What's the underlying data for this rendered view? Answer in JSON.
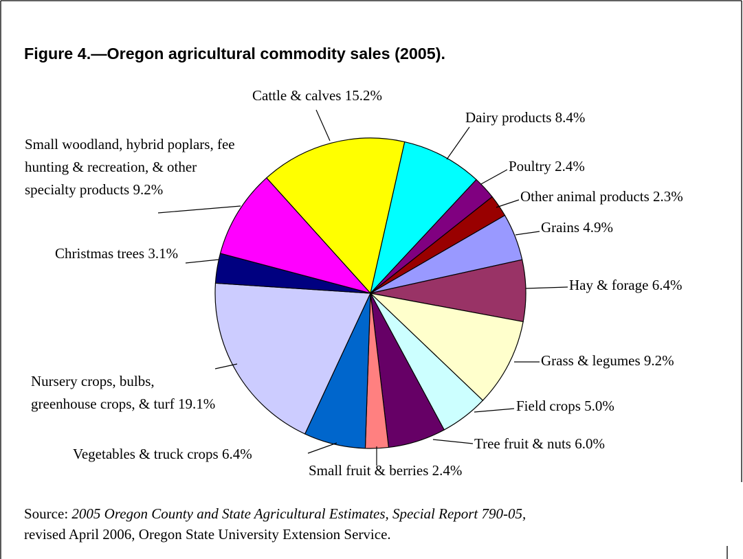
{
  "chart_data": {
    "type": "pie",
    "title": "Figure 4.—Oregon agricultural commodity sales (2005).",
    "categories": [
      "Cattle & calves",
      "Dairy products",
      "Poultry",
      "Other animal products",
      "Grains",
      "Hay & forage",
      "Grass & legumes",
      "Field crops",
      "Tree fruit & nuts",
      "Small fruit & berries",
      "Vegetables & truck crops",
      "Nursery crops, bulbs, greenhouse crops, & turf",
      "Christmas trees",
      "Small woodland, hybrid poplars, fee hunting & recreation, & other specialty products"
    ],
    "values": [
      15.2,
      8.4,
      2.4,
      2.3,
      4.9,
      6.4,
      9.2,
      5.0,
      6.0,
      2.4,
      6.4,
      19.1,
      3.1,
      9.2
    ],
    "value_labels": [
      "15.2%",
      "8.4%",
      "2.4%",
      "2.3%",
      "4.9%",
      "6.4%",
      "9.2%",
      "5.0%",
      "6.0%",
      "2.4%",
      "6.4%",
      "19.1%",
      "3.1%",
      "9.2%"
    ],
    "colors": [
      "#ffff00",
      "#00ffff",
      "#800080",
      "#990000",
      "#9999ff",
      "#993366",
      "#ffffcc",
      "#ccffff",
      "#660066",
      "#ff8080",
      "#0066cc",
      "#ccccff",
      "#000080",
      "#ff00ff"
    ],
    "source_label": "Source:",
    "source_title": "2005 Oregon County and State Agricultural Estimates, Special Report 790-05,",
    "source_note": "revised April 2006, Oregon State University Extension Service."
  }
}
